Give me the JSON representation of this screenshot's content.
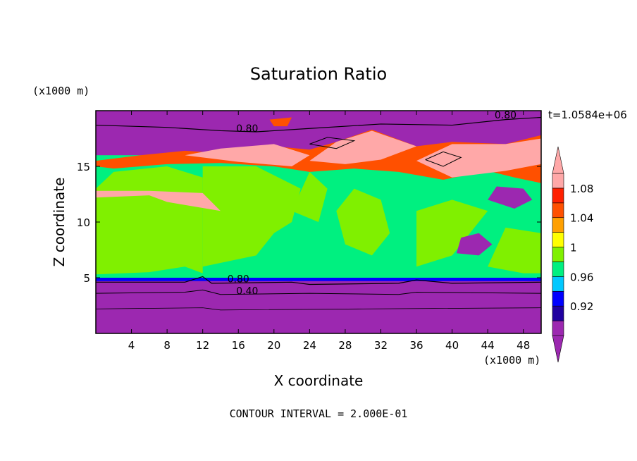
{
  "chart_data": {
    "type": "heatmap",
    "title": "Saturation Ratio",
    "xlabel": "X coordinate",
    "ylabel": "Z coordinate",
    "x_unit": "(x1000 m)",
    "y_unit": "(x1000 m)",
    "xlim": [
      0,
      50
    ],
    "ylim": [
      0,
      20
    ],
    "x_ticks": [
      4,
      8,
      12,
      16,
      20,
      24,
      28,
      32,
      36,
      40,
      44,
      48
    ],
    "y_ticks": [
      5,
      10,
      15
    ],
    "time_label": "t=1.0584e+06",
    "footer": "CONTOUR INTERVAL = 2.000E-01",
    "contour_labels": [
      {
        "text": "0.80",
        "x": 17,
        "y": 18.1
      },
      {
        "text": "0.80",
        "x": 46,
        "y": 19.3
      },
      {
        "text": "0.80",
        "x": 16,
        "y": 4.6
      },
      {
        "text": "0.40",
        "x": 17,
        "y": 3.5
      }
    ],
    "colorbar": {
      "levels": [
        0.92,
        0.96,
        1,
        1.04,
        1.08
      ],
      "level_labels": [
        "0.92",
        "0.96",
        "1",
        "1.04",
        "1.08"
      ],
      "colors": [
        "#9c28b0",
        "#2000a0",
        "#0000ff",
        "#00c8ff",
        "#00f080",
        "#80f000",
        "#ffff00",
        "#ffa000",
        "#ff5000",
        "#ff2000",
        "#ffa8a8"
      ]
    }
  }
}
